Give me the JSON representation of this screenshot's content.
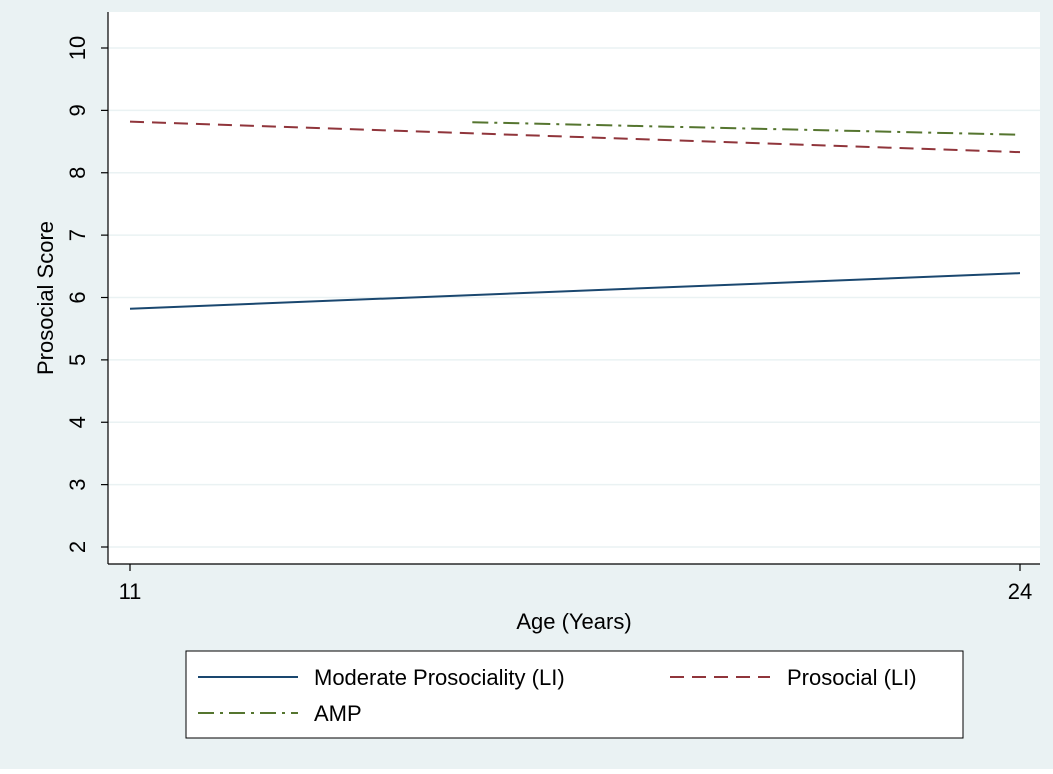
{
  "chart_data": {
    "type": "line",
    "xlabel": "Age (Years)",
    "ylabel": "Prosocial Score",
    "xlim": [
      11,
      24
    ],
    "ylim": [
      2,
      10
    ],
    "x_ticks": [
      11,
      24
    ],
    "y_ticks": [
      2,
      3,
      4,
      5,
      6,
      7,
      8,
      9,
      10
    ],
    "grid": true,
    "legend_position": "bottom",
    "series": [
      {
        "name": "Moderate Prosociality (LI)",
        "color": "#1a476f",
        "dash": "solid",
        "x": [
          11,
          24
        ],
        "y": [
          5.82,
          6.39
        ]
      },
      {
        "name": "Prosocial (LI)",
        "color": "#90353b",
        "dash": "dash",
        "x": [
          11,
          24
        ],
        "y": [
          8.82,
          8.33
        ]
      },
      {
        "name": "AMP",
        "color": "#55752f",
        "dash": "dashdot",
        "x": [
          16,
          24
        ],
        "y": [
          8.81,
          8.61
        ]
      }
    ]
  },
  "colors": {
    "outer_background": "#eaf2f3",
    "plot_background": "#ffffff",
    "grid": "#eaf2f3"
  }
}
